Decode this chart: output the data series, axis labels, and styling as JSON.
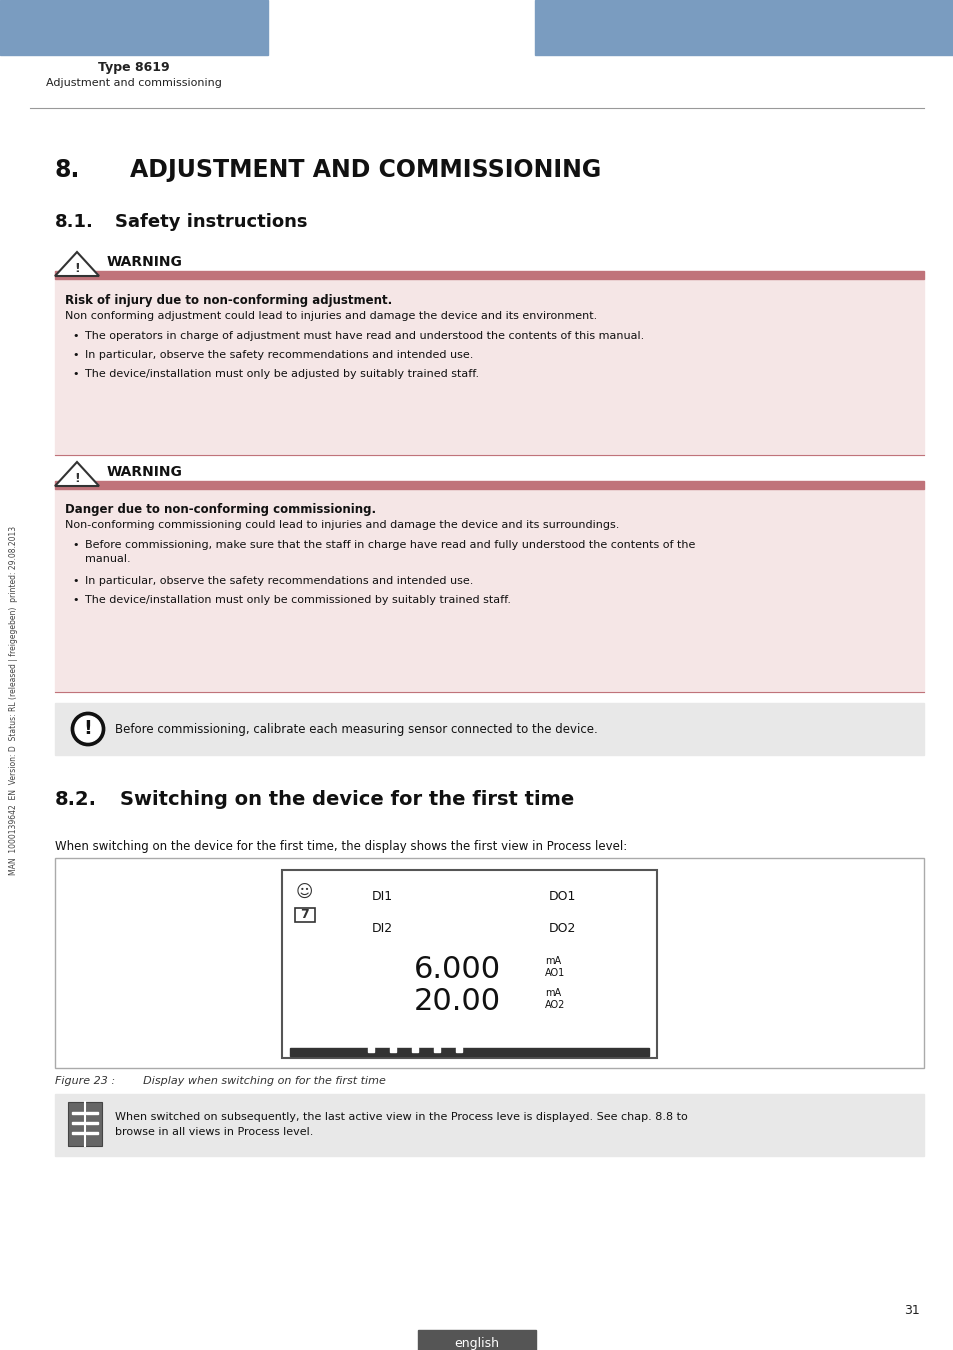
{
  "page_num": "31",
  "language_tab": "english",
  "header_bar_color": "#7a9cc0",
  "header_type": "Type 8619",
  "header_subtitle": "Adjustment and commissioning",
  "warning_label": "WARNING",
  "warning_bar_color": "#c0737a",
  "warning_bg_color": "#f5e6e6",
  "warning1_bold": "Risk of injury due to non-conforming adjustment.",
  "warning1_body": "Non conforming adjustment could lead to injuries and damage the device and its environment.",
  "warning1_bullets": [
    "The operators in charge of adjustment must have read and understood the contents of this manual.",
    "In particular, observe the safety recommendations and intended use.",
    "The device/installation must only be adjusted by suitably trained staff."
  ],
  "warning2_bold": "Danger due to non-conforming commissioning.",
  "warning2_body": "Non-conforming commissioning could lead to injuries and damage the device and its surroundings.",
  "warning2_bullets_line1": "Before commissioning, make sure that the staff in charge have read and fully understood the contents of the",
  "warning2_bullets_line2": "manual.",
  "warning2_bullet2": "In particular, observe the safety recommendations and intended use.",
  "warning2_bullet3": "The device/installation must only be commissioned by suitably trained staff.",
  "note_bg_color": "#e8e8e8",
  "note_text": "Before commissioning, calibrate each measuring sensor connected to the device.",
  "sub_title_2": "8.2.",
  "sub_title_2b": "Switching on the device for the first time",
  "para_text": "When switching on the device for the first time, the display shows the first view in Process level:",
  "figure_caption": "Figure 23 :        Display when switching on for the first time",
  "info_line1": "When switched on subsequently, the last active view in the Process leve is displayed. See chap. 8.8 to",
  "info_line2": "browse in all views in Process level.",
  "side_text": "MAN  1000139642  EN  Version: D  Status: RL (released | freigegeben)  printed: 29.08.2013",
  "divider_color": "#aaaaaa",
  "text_color": "#1a1a1a"
}
